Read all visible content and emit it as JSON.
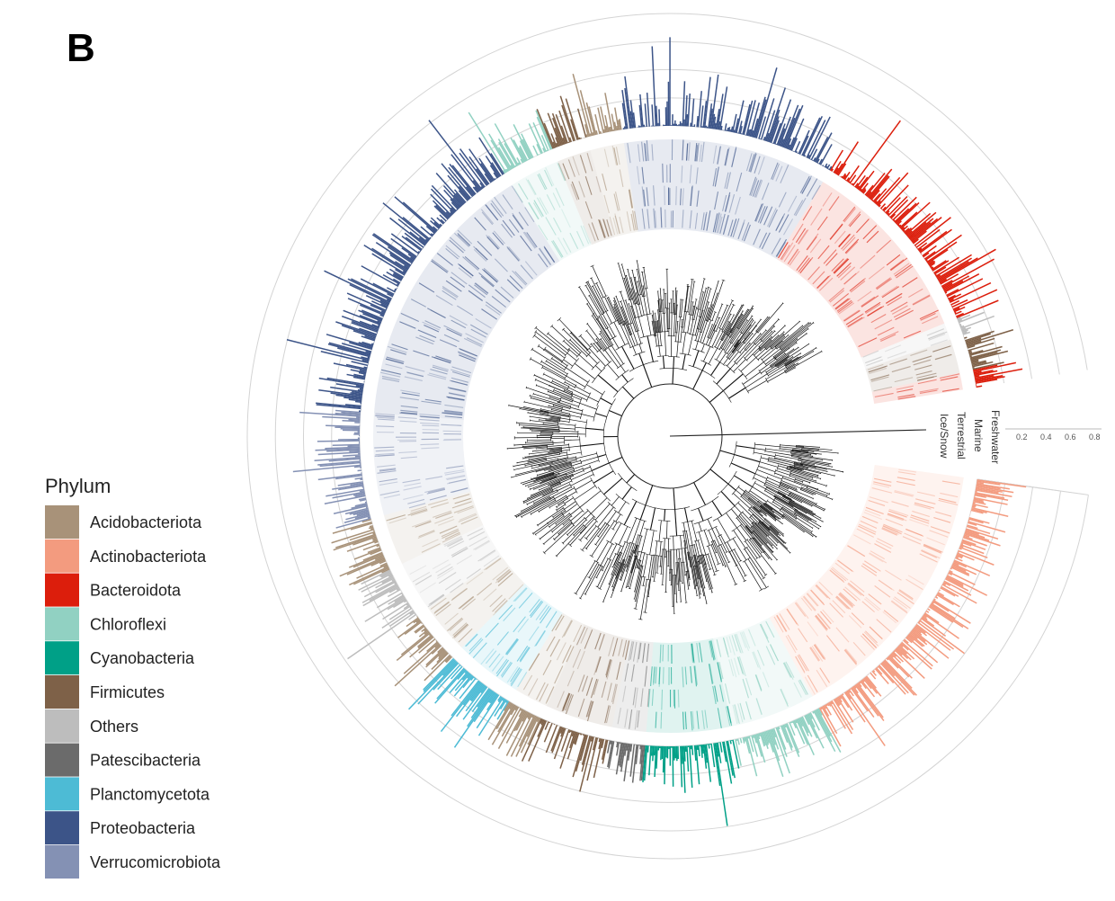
{
  "panel_label": "B",
  "chart_data": {
    "type": "circular-phylogenetic-tree",
    "legend": {
      "title": "Phylum",
      "items": [
        {
          "label": "Acidobacteriota",
          "color": "#a89279"
        },
        {
          "label": "Actinobacteriota",
          "color": "#f39b7f"
        },
        {
          "label": "Bacteroidota",
          "color": "#dc1e0c"
        },
        {
          "label": "Chloroflexi",
          "color": "#91d1c2"
        },
        {
          "label": "Cyanobacteria",
          "color": "#00a087"
        },
        {
          "label": "Firmicutes",
          "color": "#7e6148"
        },
        {
          "label": "Others",
          "color": "#bdbdbd"
        },
        {
          "label": "Patescibacteria",
          "color": "#6b6b6b"
        },
        {
          "label": "Planctomycetota",
          "color": "#4dbbd5"
        },
        {
          "label": "Proteobacteria",
          "color": "#3c5488"
        },
        {
          "label": "Verrucomicrobiota",
          "color": "#8491b4"
        }
      ]
    },
    "ring_labels": [
      "Freshwater",
      "Marine",
      "Terrestrial",
      "Ice/Snow"
    ],
    "bar_axis_ticks": [
      "0.2",
      "0.4",
      "0.6",
      "0.8"
    ],
    "bar_axis_range": [
      0,
      0.8
    ],
    "clade_order": [
      {
        "phylum": "Actinobacteriota",
        "share": 0.16
      },
      {
        "phylum": "Chloroflexi",
        "share": 0.05
      },
      {
        "phylum": "Cyanobacteria",
        "share": 0.05
      },
      {
        "phylum": "Patescibacteria",
        "share": 0.02
      },
      {
        "phylum": "Firmicutes",
        "share": 0.04
      },
      {
        "phylum": "Acidobacteriota",
        "share": 0.02
      },
      {
        "phylum": "Planctomycetota",
        "share": 0.04
      },
      {
        "phylum": "Acidobacteriota",
        "share": 0.03
      },
      {
        "phylum": "Others",
        "share": 0.03
      },
      {
        "phylum": "Acidobacteriota",
        "share": 0.03
      },
      {
        "phylum": "Verrucomicrobiota",
        "share": 0.06
      },
      {
        "phylum": "Proteobacteria",
        "share": 0.16
      },
      {
        "phylum": "Chloroflexi",
        "share": 0.03
      },
      {
        "phylum": "Firmicutes",
        "share": 0.02
      },
      {
        "phylum": "Acidobacteriota",
        "share": 0.02
      },
      {
        "phylum": "Proteobacteria",
        "share": 0.12
      },
      {
        "phylum": "Bacteroidota",
        "share": 0.11
      },
      {
        "phylum": "Others",
        "share": 0.01
      },
      {
        "phylum": "Firmicutes",
        "share": 0.02
      },
      {
        "phylum": "Bacteroidota",
        "share": 0.01
      }
    ],
    "typical_max_abundance": 0.8
  }
}
